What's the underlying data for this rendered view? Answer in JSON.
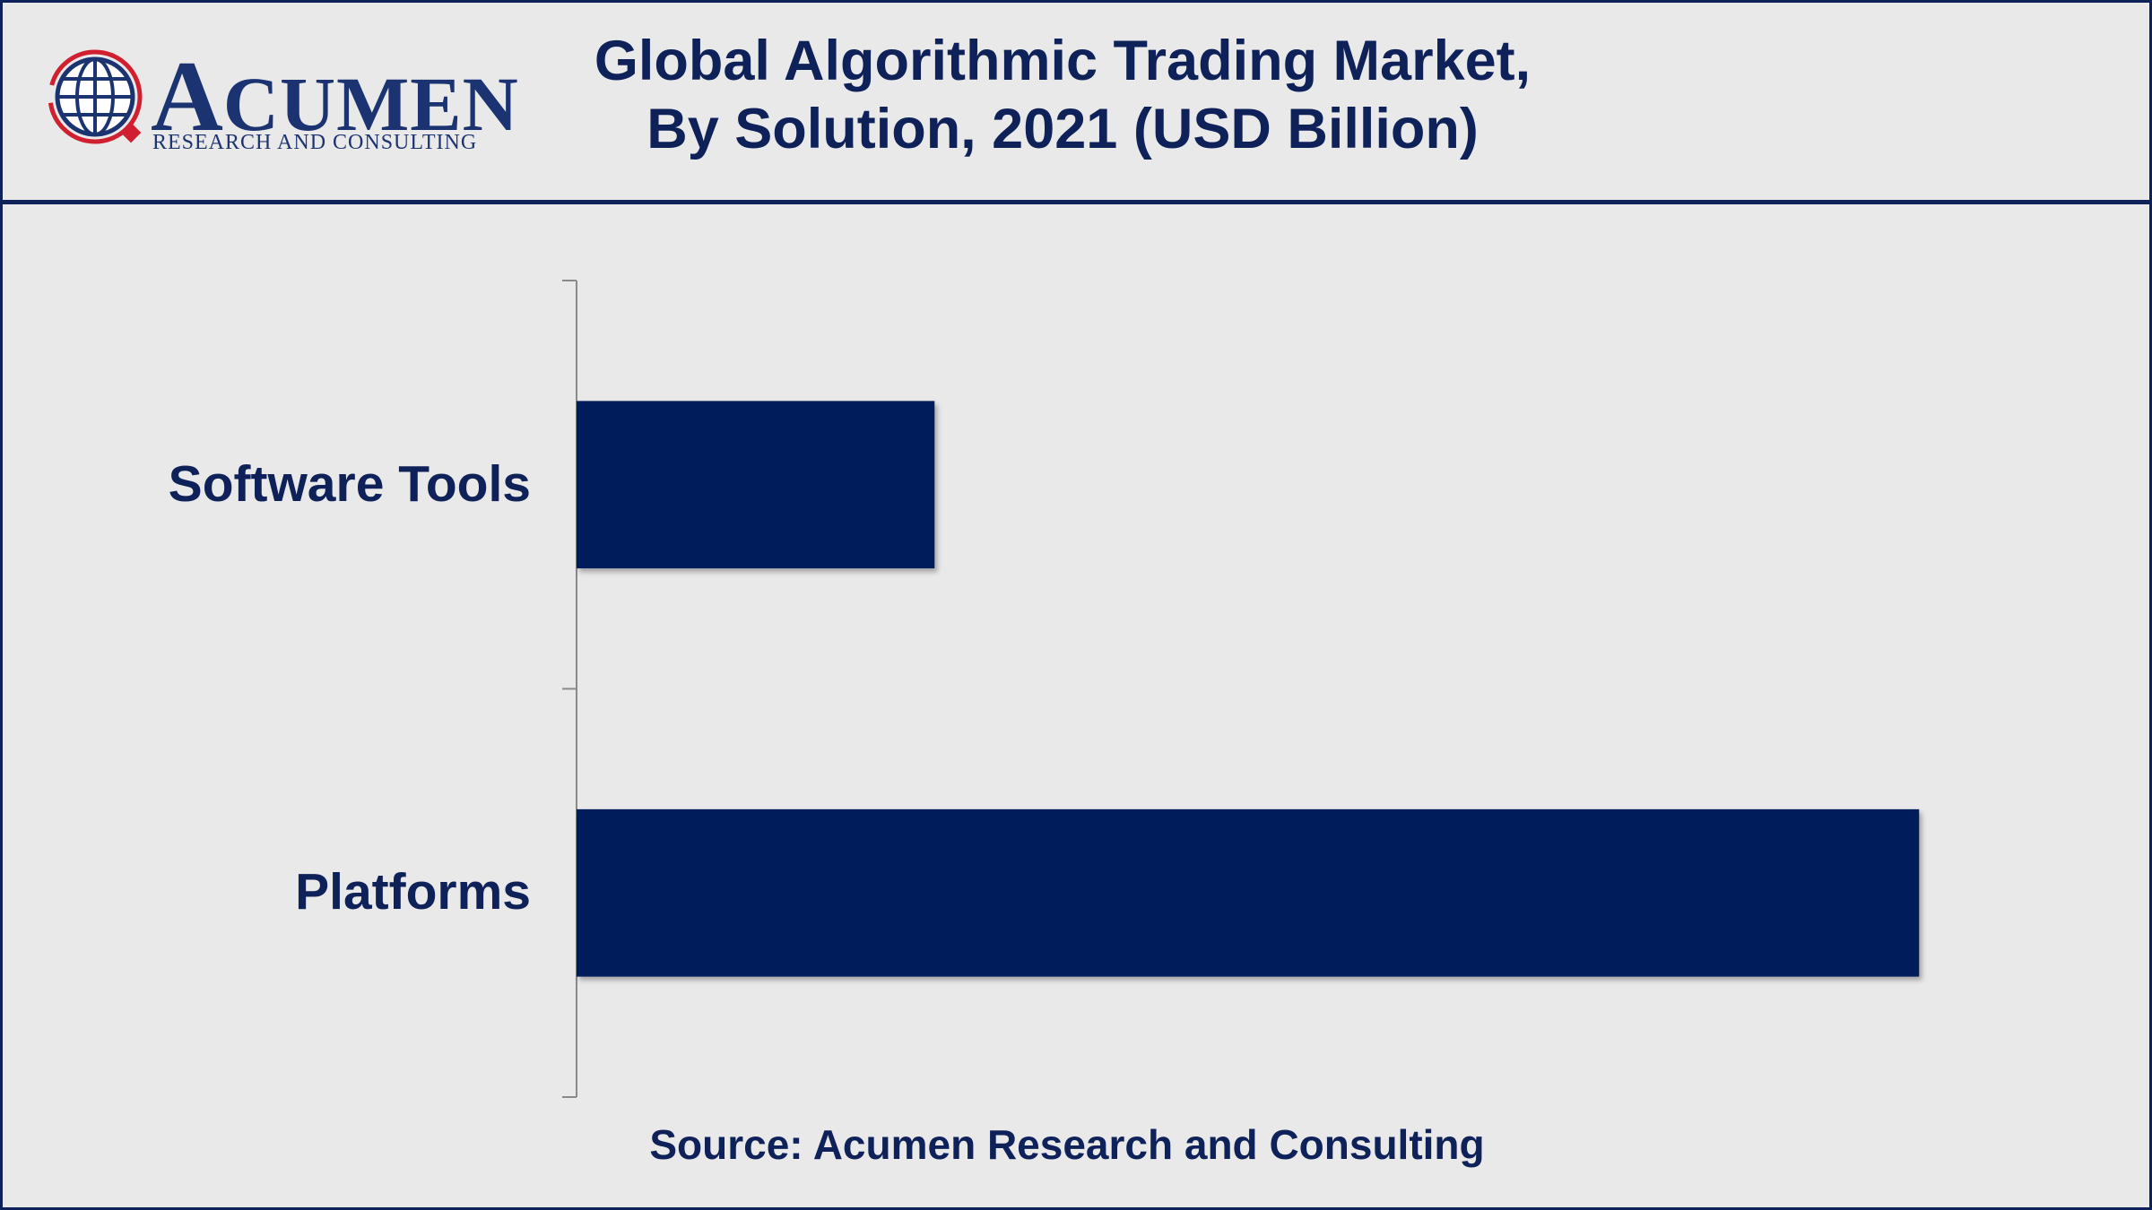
{
  "logo": {
    "brand_initial": "A",
    "brand_rest": "CUMEN",
    "tagline": "RESEARCH AND CONSULTING",
    "brand_color": "#1c3371",
    "accent_color": "#d0202f"
  },
  "title": {
    "line1": "Global Algorithmic Trading Market,",
    "line2": "By Solution, 2021 (USD Billion)"
  },
  "chart_data": {
    "type": "bar",
    "orientation": "horizontal",
    "categories": [
      "Software Tools",
      "Platforms"
    ],
    "values": [
      4.0,
      15.0
    ],
    "xlim": [
      0,
      16.5
    ],
    "bar_color": "#001c5a",
    "grid": false,
    "legend": "none"
  },
  "source": "Source: Acumen Research and Consulting"
}
